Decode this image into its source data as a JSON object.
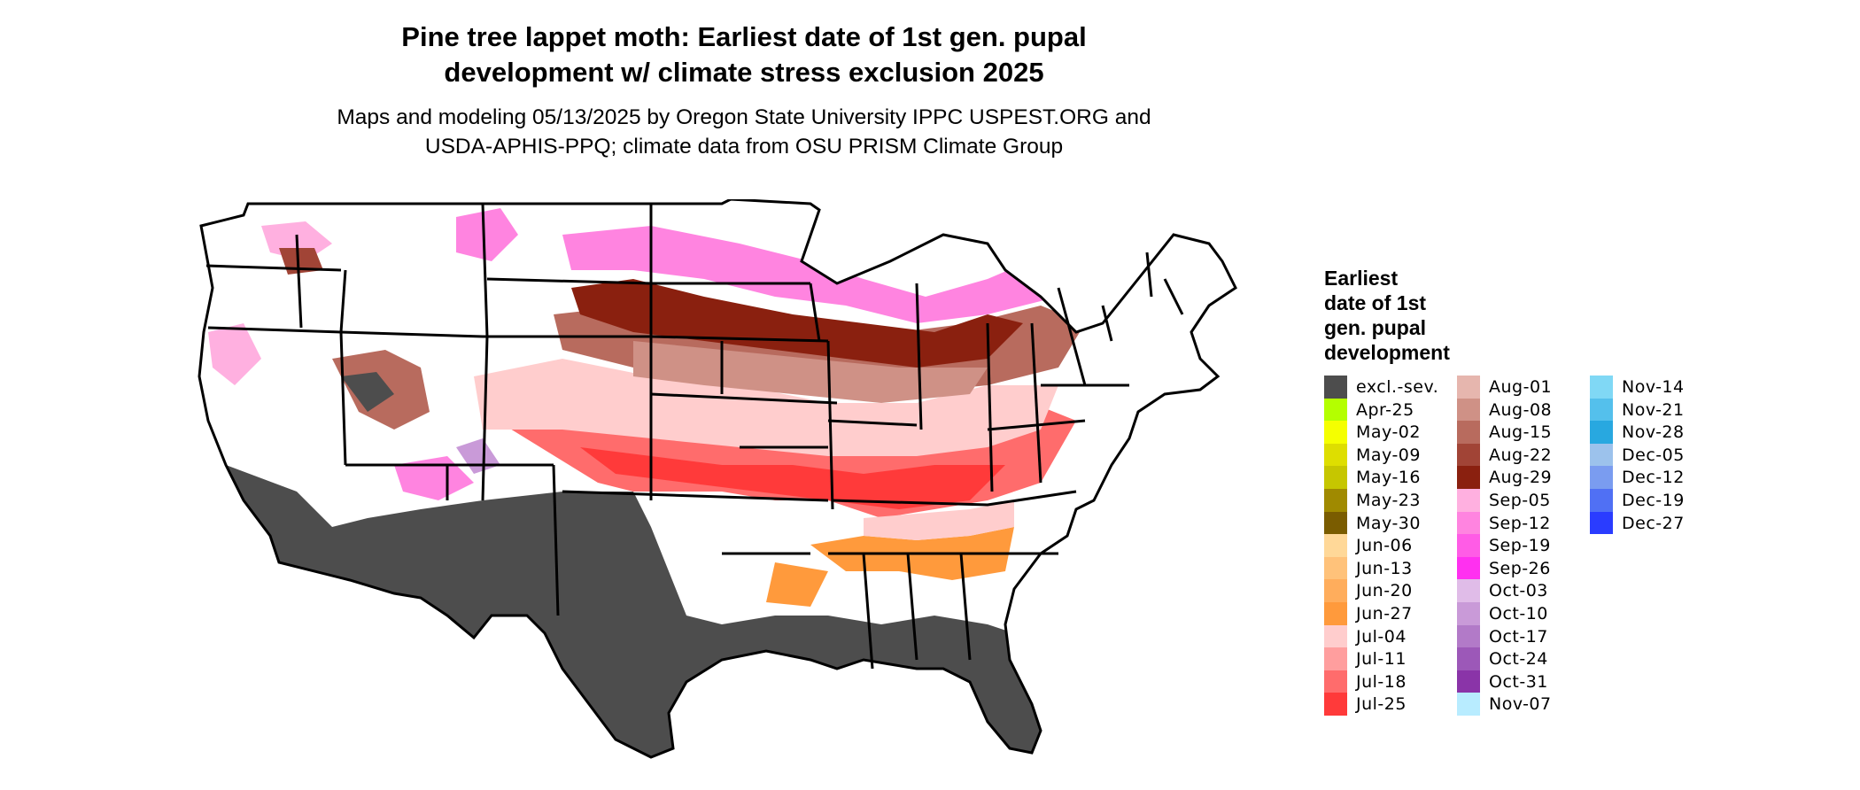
{
  "title_line1": "Pine tree lappet moth: Earliest date of 1st gen. pupal",
  "title_line2": "development w/ climate stress exclusion 2025",
  "subtitle_line1": "Maps and modeling 05/13/2025 by Oregon State University IPPC USPEST.ORG and",
  "subtitle_line2": "USDA-APHIS-PPQ; climate data from OSU PRISM Climate Group",
  "legend": {
    "title_line1": "Earliest",
    "title_line2": "date of 1st",
    "title_line3": "gen. pupal",
    "title_line4": "development",
    "columns": [
      [
        {
          "label": "excl.-sev.",
          "color": "#4d4d4d"
        },
        {
          "label": "Apr-25",
          "color": "#b4ff00"
        },
        {
          "label": "May-02",
          "color": "#f5ff00"
        },
        {
          "label": "May-09",
          "color": "#dede00"
        },
        {
          "label": "May-16",
          "color": "#c6c600"
        },
        {
          "label": "May-23",
          "color": "#a08a00"
        },
        {
          "label": "May-30",
          "color": "#7a5c00"
        },
        {
          "label": "Jun-06",
          "color": "#ffd898"
        },
        {
          "label": "Jun-13",
          "color": "#ffc27a"
        },
        {
          "label": "Jun-20",
          "color": "#ffad5c"
        },
        {
          "label": "Jun-27",
          "color": "#ff9a3c"
        },
        {
          "label": "Jul-04",
          "color": "#ffcdcd"
        },
        {
          "label": "Jul-11",
          "color": "#ff9e9e"
        },
        {
          "label": "Jul-18",
          "color": "#ff6c6c"
        },
        {
          "label": "Jul-25",
          "color": "#ff3a3a"
        }
      ],
      [
        {
          "label": "Aug-01",
          "color": "#e6b6ae"
        },
        {
          "label": "Aug-08",
          "color": "#cf9186"
        },
        {
          "label": "Aug-15",
          "color": "#b86b5e"
        },
        {
          "label": "Aug-22",
          "color": "#a14436"
        },
        {
          "label": "Aug-29",
          "color": "#8a200f"
        },
        {
          "label": "Sep-05",
          "color": "#ffb0e0"
        },
        {
          "label": "Sep-12",
          "color": "#ff84e0"
        },
        {
          "label": "Sep-19",
          "color": "#ff5ce6"
        },
        {
          "label": "Sep-26",
          "color": "#ff30f0"
        },
        {
          "label": "Oct-03",
          "color": "#e0bce8"
        },
        {
          "label": "Oct-10",
          "color": "#c99ad8"
        },
        {
          "label": "Oct-17",
          "color": "#b27ac8"
        },
        {
          "label": "Oct-24",
          "color": "#9c58b8"
        },
        {
          "label": "Oct-31",
          "color": "#8a34a8"
        },
        {
          "label": "Nov-07",
          "color": "#b8ecff"
        }
      ],
      [
        {
          "label": "Nov-14",
          "color": "#80d8f5"
        },
        {
          "label": "Nov-21",
          "color": "#54c0ec"
        },
        {
          "label": "Nov-28",
          "color": "#28a8e0"
        },
        {
          "label": "Dec-05",
          "color": "#9cc2ec"
        },
        {
          "label": "Dec-12",
          "color": "#7a9cf0"
        },
        {
          "label": "Dec-19",
          "color": "#5070f4"
        },
        {
          "label": "Dec-27",
          "color": "#2a3cff"
        }
      ]
    ]
  },
  "map": {
    "region": "Contiguous United States",
    "borders_color": "#000000",
    "background_color": "#ffffff"
  }
}
